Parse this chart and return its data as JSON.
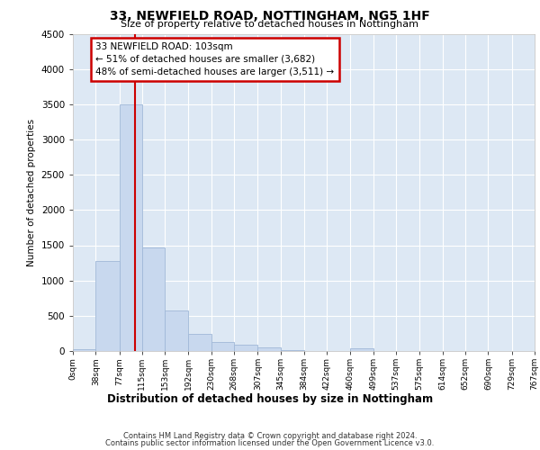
{
  "title": "33, NEWFIELD ROAD, NOTTINGHAM, NG5 1HF",
  "subtitle": "Size of property relative to detached houses in Nottingham",
  "xlabel": "Distribution of detached houses by size in Nottingham",
  "ylabel": "Number of detached properties",
  "bar_color": "#c8d8ee",
  "bar_edge_color": "#a0b8d8",
  "background_color": "#dde8f4",
  "grid_color": "#ffffff",
  "vline_x": 103,
  "vline_color": "#cc0000",
  "annotation_box_color": "#cc0000",
  "annotation_line1": "33 NEWFIELD ROAD: 103sqm",
  "annotation_line2": "← 51% of detached houses are smaller (3,682)",
  "annotation_line3": "48% of semi-detached houses are larger (3,511) →",
  "bin_edges": [
    0,
    38,
    77,
    115,
    153,
    192,
    230,
    268,
    307,
    345,
    384,
    422,
    460,
    499,
    537,
    575,
    614,
    652,
    690,
    729,
    767
  ],
  "bar_heights": [
    25,
    1280,
    3500,
    1470,
    575,
    240,
    130,
    90,
    45,
    12,
    5,
    5,
    42,
    2,
    2,
    1,
    1,
    1,
    1,
    1
  ],
  "ylim": [
    0,
    4500
  ],
  "yticks": [
    0,
    500,
    1000,
    1500,
    2000,
    2500,
    3000,
    3500,
    4000,
    4500
  ],
  "footer_line1": "Contains HM Land Registry data © Crown copyright and database right 2024.",
  "footer_line2": "Contains public sector information licensed under the Open Government Licence v3.0."
}
